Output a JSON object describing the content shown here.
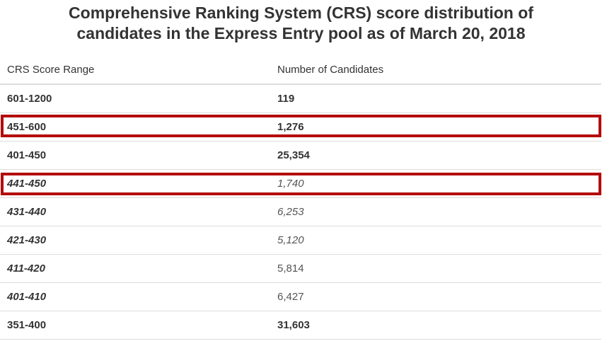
{
  "title": {
    "line1": "Comprehensive Ranking System (CRS) score distribution of",
    "line2": "candidates in the Express Entry pool as of March 20, 2018"
  },
  "table": {
    "headers": {
      "range": "CRS Score Range",
      "count": "Number of Candidates"
    },
    "rows": [
      {
        "range": "601-1200",
        "count": "119"
      },
      {
        "range": "451-600",
        "count": "1,276"
      },
      {
        "range": "401-450",
        "count": "25,354"
      },
      {
        "range": "441-450",
        "count": "1,740"
      },
      {
        "range": "431-440",
        "count": "6,253"
      },
      {
        "range": "421-430",
        "count": "5,120"
      },
      {
        "range": "411-420",
        "count": "5,814"
      },
      {
        "range": "401-410",
        "count": "6,427"
      },
      {
        "range": "351-400",
        "count": "31,603"
      }
    ]
  },
  "highlight_color": "#b40b0b"
}
